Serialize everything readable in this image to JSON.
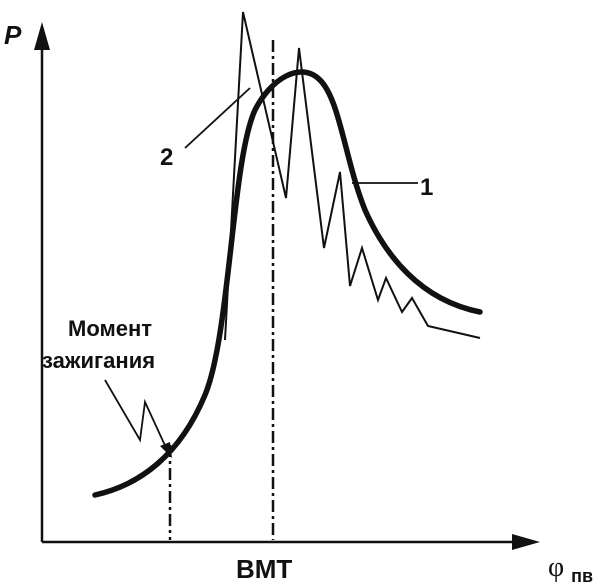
{
  "axes": {
    "y_label": "P",
    "x_label_main": "φ",
    "x_label_sub": "пв",
    "tdc_label": "ВМТ"
  },
  "curves": {
    "curve_1_label": "1",
    "curve_2_label": "2"
  },
  "annotation": {
    "ignition_line1": "Момент",
    "ignition_line2": "зажигания"
  }
}
